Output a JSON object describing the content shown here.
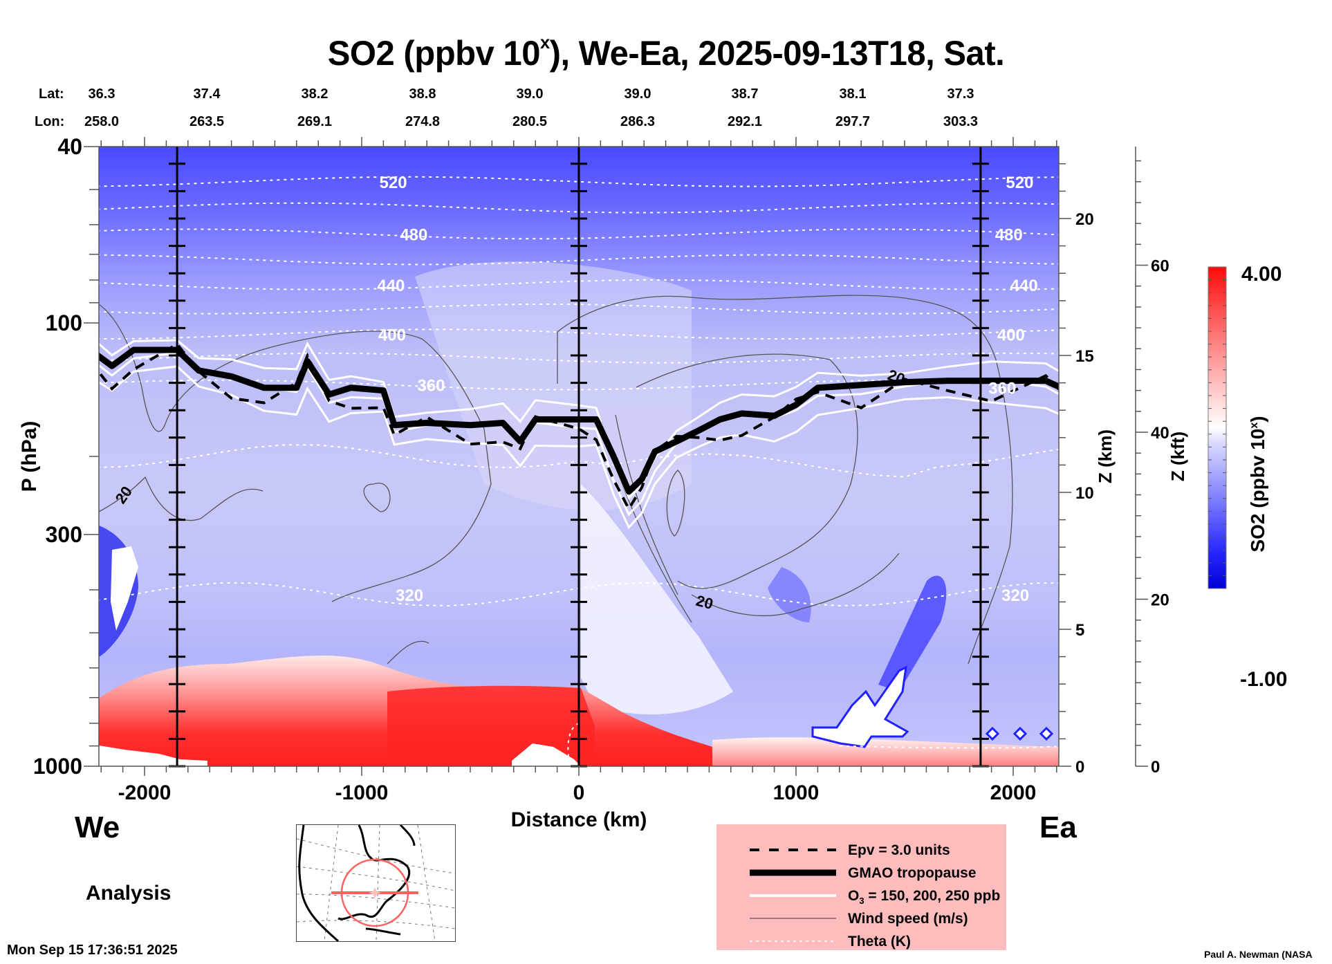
{
  "title": {
    "main": "SO2 (ppbv 10",
    "sup": "x",
    "rest": "), We-Ea, 2025-09-13T18, Sat."
  },
  "lat_label": "Lat:",
  "lon_label": "Lon:",
  "lat_values": [
    "36.3",
    "37.4",
    "38.2",
    "38.8",
    "39.0",
    "39.0",
    "38.7",
    "38.1",
    "37.3"
  ],
  "lon_values": [
    "258.0",
    "263.5",
    "269.1",
    "274.8",
    "280.5",
    "286.3",
    "292.1",
    "297.7",
    "303.3"
  ],
  "direction_left": "We",
  "direction_right": "Ea",
  "analysis_label": "Analysis",
  "timestamp": "Mon Sep 15 17:36:51 2025",
  "credit": "Paul A. Newman (NASA",
  "legend": {
    "items": [
      {
        "label": "Epv = 3.0 units",
        "style": "dashed-black"
      },
      {
        "label": "GMAO tropopause",
        "style": "thick-black"
      },
      {
        "label_pre": "O",
        "label_sub": "3",
        "label_post": " = 150, 200, 250 ppb",
        "style": "white"
      },
      {
        "label": "Wind speed (m/s)",
        "style": "thin-gray"
      },
      {
        "label": "Theta (K)",
        "style": "dotted-white"
      }
    ],
    "background": "#ffbcbc"
  },
  "chart_data": {
    "type": "heatmap",
    "title": "SO2 (ppbv 10^x), We-Ea, 2025-09-13T18, Sat.",
    "xlabel": "Distance (km)",
    "ylabel": "P (hPa)",
    "y2label": "Z (km)",
    "y3label": "Z (kft)",
    "xlim": [
      -2250,
      2250
    ],
    "ylim_hpa": [
      1000,
      40
    ],
    "yscale": "log",
    "x_ticks": [
      -2000,
      -1000,
      0,
      1000,
      2000
    ],
    "x_tick_labels": [
      "-2000",
      "-1000",
      "0",
      "1000",
      "2000"
    ],
    "y_ticks": [
      40,
      100,
      300,
      1000
    ],
    "y_tick_labels": [
      "40",
      "100",
      "300",
      "1000"
    ],
    "z_km_ticks": [
      0,
      5,
      10,
      15,
      20
    ],
    "z_km_tick_labels": [
      "0",
      "5",
      "10",
      "15",
      "20"
    ],
    "z_kft_ticks": [
      0,
      20,
      40,
      60
    ],
    "z_kft_tick_labels": [
      "0",
      "20",
      "40",
      "60"
    ],
    "vertical_markers_km": [
      -1850,
      0,
      1850
    ],
    "colorbar": {
      "label": "SO2 (ppbv 10x)",
      "label_pre": "SO2 (ppbv 10",
      "label_sup": "x",
      "label_post": ")",
      "min": -1.0,
      "max": 4.0,
      "min_label": "-1.00",
      "max_label": "4.00",
      "colormap": "blue-white-red",
      "low_color": "#0000e0",
      "mid_color": "#ffffff",
      "high_color": "#ff0000"
    },
    "theta_contours_K": [
      320,
      360,
      400,
      440,
      480,
      520
    ],
    "theta_labels": [
      "520",
      "480",
      "440",
      "400",
      "360",
      "320",
      "520",
      "480",
      "440",
      "400",
      "360",
      "320"
    ],
    "wind_speed_labels": [
      "20",
      "20",
      "20"
    ],
    "legend_placement": "bottom-center",
    "background_regions": [
      {
        "name": "stratosphere",
        "x": [
          -2250,
          2250
        ],
        "p": [
          40,
          120
        ],
        "value_approx": 0.6
      },
      {
        "name": "upper-troposphere",
        "x": [
          -2250,
          2250
        ],
        "p": [
          120,
          600
        ],
        "value_approx": 0.9
      },
      {
        "name": "boundary-layer-west",
        "x": [
          -2250,
          0
        ],
        "p": [
          600,
          1000
        ],
        "value_approx": 3.5
      },
      {
        "name": "boundary-layer-east",
        "x": [
          0,
          2250
        ],
        "p": [
          700,
          1000
        ],
        "value_approx": 1.5
      }
    ],
    "tropopause_hpa": [
      [
        -2250,
        115
      ],
      [
        -2150,
        125
      ],
      [
        -2050,
        115
      ],
      [
        -1850,
        115
      ],
      [
        -1750,
        128
      ],
      [
        -1600,
        132
      ],
      [
        -1450,
        140
      ],
      [
        -1300,
        140
      ],
      [
        -1250,
        122
      ],
      [
        -1150,
        145
      ],
      [
        -1050,
        140
      ],
      [
        -900,
        142
      ],
      [
        -850,
        170
      ],
      [
        -700,
        168
      ],
      [
        -500,
        170
      ],
      [
        -350,
        168
      ],
      [
        -270,
        185
      ],
      [
        -200,
        165
      ],
      [
        0,
        165
      ],
      [
        80,
        165
      ],
      [
        160,
        200
      ],
      [
        230,
        240
      ],
      [
        290,
        225
      ],
      [
        350,
        195
      ],
      [
        450,
        185
      ],
      [
        550,
        175
      ],
      [
        650,
        165
      ],
      [
        750,
        160
      ],
      [
        900,
        162
      ],
      [
        1000,
        153
      ],
      [
        1100,
        140
      ],
      [
        1300,
        138
      ],
      [
        1500,
        136
      ],
      [
        1700,
        135
      ],
      [
        1900,
        135
      ],
      [
        2150,
        135
      ],
      [
        2250,
        142
      ]
    ]
  }
}
